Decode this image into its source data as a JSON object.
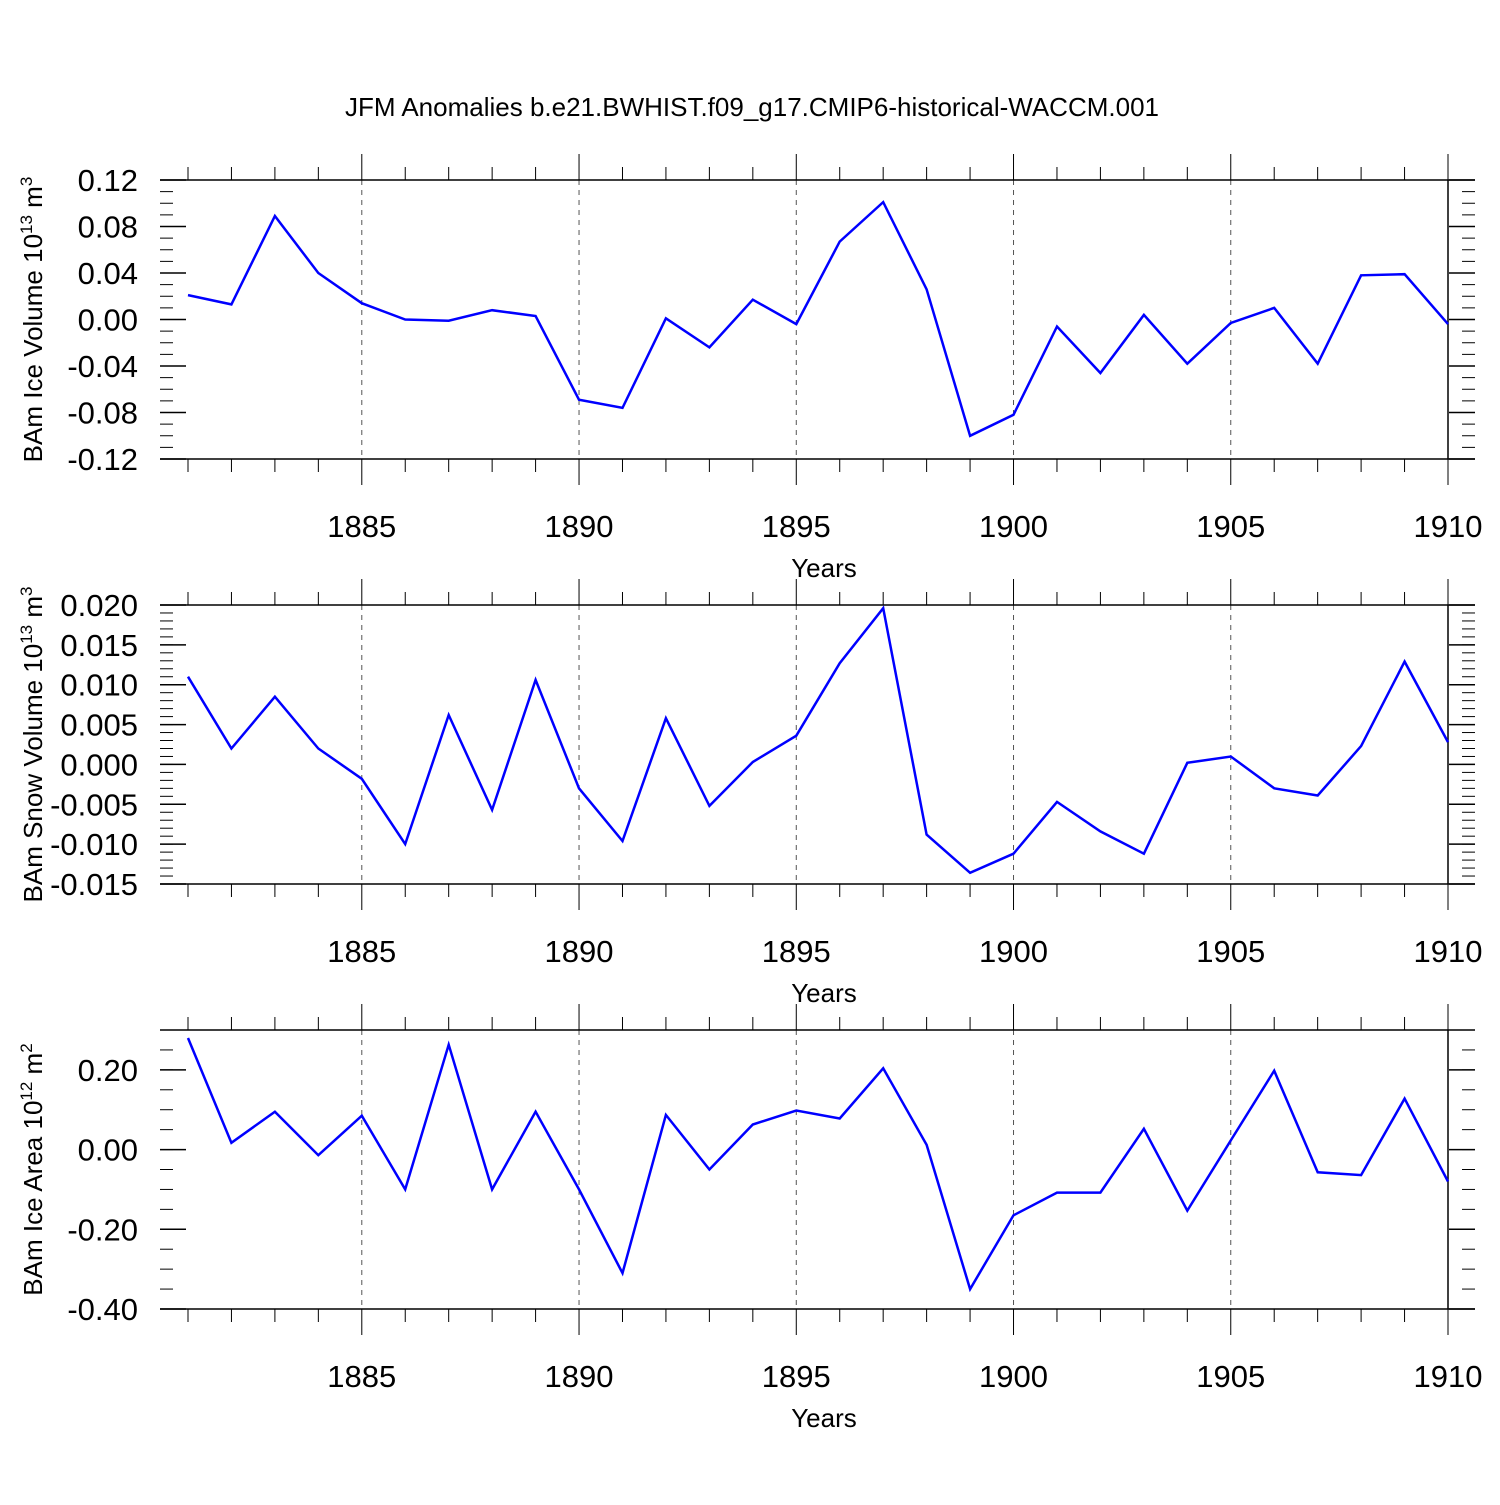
{
  "title": "JFM Anomalies b.e21.BWHIST.f09_g17.CMIP6-historical-WACCM.001",
  "colors": {
    "line": "#0000ff",
    "axis": "#000000",
    "grid": "#555555"
  },
  "chart_data": [
    {
      "type": "line",
      "name": "ice-volume",
      "ylabel_main": "BAm Ice Volume 10",
      "ylabel_exp": "13",
      "ylabel_unit": " m",
      "ylabel_unit_exp": "3",
      "xlabel": "Years",
      "xlim": [
        1881,
        1910
      ],
      "ylim": [
        -0.12,
        0.12
      ],
      "x_ticks": [
        1885,
        1890,
        1895,
        1900,
        1905,
        1910
      ],
      "y_ticks": [
        -0.12,
        -0.08,
        -0.04,
        0.0,
        0.04,
        0.08,
        0.12
      ],
      "y_tick_labels": [
        "-0.12",
        "-0.08",
        "-0.04",
        "0.00",
        "0.04",
        "0.08",
        "0.12"
      ],
      "y_minor_step": 0.01,
      "x": [
        1881,
        1882,
        1883,
        1884,
        1885,
        1886,
        1887,
        1888,
        1889,
        1890,
        1891,
        1892,
        1893,
        1894,
        1895,
        1896,
        1897,
        1898,
        1899,
        1900,
        1901,
        1902,
        1903,
        1904,
        1905,
        1906,
        1907,
        1908,
        1909,
        1910
      ],
      "values": [
        0.021,
        0.013,
        0.089,
        0.04,
        0.014,
        0.0,
        -0.001,
        0.008,
        0.003,
        -0.069,
        -0.076,
        0.001,
        -0.024,
        0.017,
        -0.004,
        0.067,
        0.101,
        0.026,
        -0.1,
        -0.082,
        -0.006,
        -0.046,
        0.004,
        -0.038,
        -0.003,
        0.01,
        -0.038,
        0.038,
        0.039,
        -0.004
      ]
    },
    {
      "type": "line",
      "name": "snow-volume",
      "ylabel_main": "BAm Snow Volume 10",
      "ylabel_exp": "13",
      "ylabel_unit": " m",
      "ylabel_unit_exp": "3",
      "xlabel": "Years",
      "xlim": [
        1881,
        1910
      ],
      "ylim": [
        -0.015,
        0.02
      ],
      "x_ticks": [
        1885,
        1890,
        1895,
        1900,
        1905,
        1910
      ],
      "y_ticks": [
        -0.015,
        -0.01,
        -0.005,
        0.0,
        0.005,
        0.01,
        0.015,
        0.02
      ],
      "y_tick_labels": [
        "-0.015",
        "-0.010",
        "-0.005",
        "0.000",
        "0.005",
        "0.010",
        "0.015",
        "0.020"
      ],
      "y_minor_step": 0.001,
      "x": [
        1881,
        1882,
        1883,
        1884,
        1885,
        1886,
        1887,
        1888,
        1889,
        1890,
        1891,
        1892,
        1893,
        1894,
        1895,
        1896,
        1897,
        1898,
        1899,
        1900,
        1901,
        1902,
        1903,
        1904,
        1905,
        1906,
        1907,
        1908,
        1909,
        1910
      ],
      "values": [
        0.011,
        0.002,
        0.0085,
        0.002,
        -0.0018,
        -0.01,
        0.0062,
        -0.0057,
        0.0106,
        -0.003,
        -0.0096,
        0.0058,
        -0.0052,
        0.0003,
        0.0036,
        0.0127,
        0.0196,
        -0.0088,
        -0.0136,
        -0.0112,
        -0.0047,
        -0.0084,
        -0.0112,
        0.0002,
        0.001,
        -0.003,
        -0.0039,
        0.0023,
        0.0129,
        0.0028
      ]
    },
    {
      "type": "line",
      "name": "ice-area",
      "ylabel_main": "BAm Ice Area 10",
      "ylabel_exp": "12",
      "ylabel_unit": " m",
      "ylabel_unit_exp": "2",
      "xlabel": "Years",
      "xlim": [
        1881,
        1910
      ],
      "ylim": [
        -0.4,
        0.3
      ],
      "x_ticks": [
        1885,
        1890,
        1895,
        1900,
        1905,
        1910
      ],
      "y_ticks": [
        -0.4,
        -0.2,
        0.0,
        0.2
      ],
      "y_tick_labels": [
        "-0.40",
        "-0.20",
        "0.00",
        "0.20"
      ],
      "y_minor_step": 0.05,
      "x": [
        1881,
        1882,
        1883,
        1884,
        1885,
        1886,
        1887,
        1888,
        1889,
        1890,
        1891,
        1892,
        1893,
        1894,
        1895,
        1896,
        1897,
        1898,
        1899,
        1900,
        1901,
        1902,
        1903,
        1904,
        1905,
        1906,
        1907,
        1908,
        1909,
        1910
      ],
      "values": [
        0.28,
        0.017,
        0.095,
        -0.014,
        0.085,
        -0.1,
        0.263,
        -0.1,
        0.095,
        -0.1,
        -0.31,
        0.087,
        -0.05,
        0.063,
        0.098,
        0.078,
        0.204,
        0.012,
        -0.35,
        -0.165,
        -0.108,
        -0.108,
        0.052,
        -0.153,
        0.023,
        0.198,
        -0.057,
        -0.064,
        0.128,
        -0.08
      ]
    }
  ]
}
